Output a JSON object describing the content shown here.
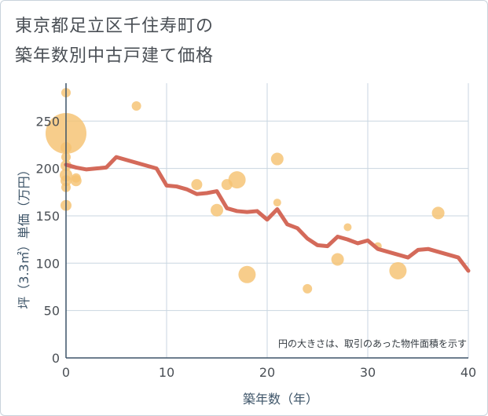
{
  "title_line1": "東京都足立区千住寿町の",
  "title_line2": "築年数別中古戸建て価格",
  "chart_data": {
    "type": "scatter+line",
    "title": "東京都足立区千住寿町の築年数別中古戸建て価格",
    "xlabel": "築年数（年）",
    "ylabel": "坪（3.3㎡）単価（万円）",
    "xlim": [
      0,
      40
    ],
    "ylim": [
      0,
      290
    ],
    "xticks": [
      0,
      10,
      20,
      30,
      40
    ],
    "yticks": [
      0,
      50,
      100,
      150,
      200,
      250
    ],
    "grid": true,
    "annotation": "円の大きさは、取引のあった物件面積を示す",
    "colors": {
      "bubble": "#f5c271",
      "line": "#d46a5a",
      "grid": "#c9d6e0",
      "axis": "#3d5468"
    },
    "scatter": [
      {
        "x": 0,
        "y": 237,
        "size": 26
      },
      {
        "x": 0,
        "y": 280,
        "size": 6
      },
      {
        "x": 0,
        "y": 222,
        "size": 7
      },
      {
        "x": 0,
        "y": 212,
        "size": 6
      },
      {
        "x": 0,
        "y": 203,
        "size": 7
      },
      {
        "x": 0,
        "y": 193,
        "size": 8
      },
      {
        "x": 0,
        "y": 187,
        "size": 7
      },
      {
        "x": 0,
        "y": 180,
        "size": 6
      },
      {
        "x": 0,
        "y": 161,
        "size": 7
      },
      {
        "x": 1,
        "y": 190,
        "size": 6
      },
      {
        "x": 1,
        "y": 187,
        "size": 7
      },
      {
        "x": 7,
        "y": 266,
        "size": 6
      },
      {
        "x": 13,
        "y": 183,
        "size": 7
      },
      {
        "x": 15,
        "y": 156,
        "size": 8
      },
      {
        "x": 16,
        "y": 183,
        "size": 7
      },
      {
        "x": 17,
        "y": 188,
        "size": 11
      },
      {
        "x": 18,
        "y": 88,
        "size": 11
      },
      {
        "x": 21,
        "y": 210,
        "size": 8
      },
      {
        "x": 21,
        "y": 164,
        "size": 5
      },
      {
        "x": 24,
        "y": 73,
        "size": 6
      },
      {
        "x": 27,
        "y": 104,
        "size": 8
      },
      {
        "x": 28,
        "y": 138,
        "size": 5
      },
      {
        "x": 31,
        "y": 118,
        "size": 5
      },
      {
        "x": 33,
        "y": 92,
        "size": 11
      },
      {
        "x": 37,
        "y": 153,
        "size": 8
      }
    ],
    "line": {
      "x": [
        0,
        1,
        2,
        3,
        4,
        5,
        6,
        7,
        8,
        9,
        10,
        11,
        12,
        13,
        14,
        15,
        16,
        17,
        18,
        19,
        20,
        21,
        22,
        23,
        24,
        25,
        26,
        27,
        28,
        29,
        30,
        31,
        32,
        33,
        34,
        35,
        36,
        37,
        38,
        39,
        40
      ],
      "y": [
        204,
        201,
        199,
        200,
        201,
        212,
        209,
        206,
        203,
        200,
        182,
        181,
        178,
        173,
        174,
        176,
        158,
        155,
        154,
        155,
        146,
        157,
        141,
        137,
        126,
        119,
        118,
        128,
        125,
        121,
        124,
        115,
        112,
        109,
        106,
        114,
        115,
        112,
        109,
        106,
        92
      ]
    }
  }
}
